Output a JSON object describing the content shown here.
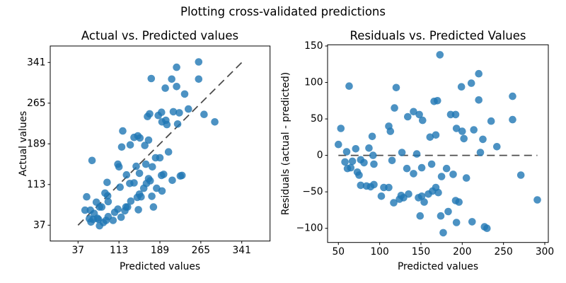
{
  "suptitle": "Plotting cross-validated predictions",
  "left_plot": {
    "title": "Actual vs. Predicted values",
    "xlabel": "Predicted values",
    "ylabel": "Actual values",
    "x_tick_labels": [
      "37",
      "113",
      "189",
      "265",
      "341"
    ],
    "y_tick_labels": [
      "37",
      "113",
      "189",
      "265",
      "341"
    ]
  },
  "right_plot": {
    "title": "Residuals vs. Predicted Values",
    "xlabel": "Predicted values",
    "ylabel": "Residuals (actual - predicted)",
    "x_tick_labels": [
      "50",
      "100",
      "150",
      "200",
      "250",
      "300"
    ],
    "y_tick_labels": [
      "−100",
      "−50",
      "0",
      "50",
      "100",
      "150"
    ]
  },
  "colors": {
    "marker": "#1f77b4",
    "marker_alpha": 0.8,
    "reference_line": "#000000",
    "reference_line_alpha": 0.7,
    "spine": "#000000",
    "background": "#ffffff"
  },
  "chart_data": [
    {
      "type": "scatter",
      "title": "Actual vs. Predicted values",
      "xlabel": "Predicted values",
      "ylabel": "Actual values",
      "x_ticks": [
        37,
        113,
        189,
        265,
        341
      ],
      "y_ticks": [
        37,
        113,
        189,
        265,
        341
      ],
      "xlim": [
        -15,
        394
      ],
      "ylim": [
        7,
        372
      ],
      "grid": false,
      "legend": false,
      "reference_line": {
        "style": "dashed",
        "x": [
          37,
          341
        ],
        "y": [
          37,
          341
        ],
        "meaning": "identity y=x"
      },
      "x": [
        50,
        53,
        58,
        60,
        61,
        63,
        65,
        67,
        71,
        73,
        75,
        77,
        77,
        81,
        84,
        87,
        89,
        91,
        92,
        93,
        93,
        102,
        105,
        111,
        111,
        113,
        115,
        117,
        118,
        120,
        124,
        126,
        127,
        129,
        133,
        134,
        135,
        141,
        141,
        145,
        147,
        148,
        149,
        151,
        151,
        152,
        154,
        159,
        161,
        163,
        164,
        166,
        168,
        168,
        170,
        171,
        173,
        174,
        175,
        177,
        181,
        183,
        186,
        189,
        192,
        192,
        193,
        193,
        196,
        199,
        200,
        202,
        205,
        211,
        212,
        214,
        220,
        220,
        222,
        225,
        227,
        230,
        235,
        242,
        261,
        261,
        271,
        291
      ],
      "y": [
        65,
        90,
        49,
        65,
        43,
        158,
        48,
        59,
        80,
        50,
        48,
        71,
        36,
        71,
        42,
        97,
        46,
        117,
        92,
        81,
        53,
        46,
        61,
        151,
        67,
        146,
        108,
        52,
        183,
        213,
        64,
        71,
        131,
        71,
        115,
        187,
        82,
        201,
        116,
        147,
        89,
        204,
        66,
        134,
        95,
        200,
        90,
        106,
        186,
        151,
        115,
        240,
        196,
        124,
        245,
        120,
        311,
        91,
        146,
        71,
        163,
        106,
        242,
        163,
        248,
        130,
        230,
        101,
        132,
        293,
        233,
        225,
        174,
        310,
        121,
        249,
        332,
        296,
        226,
        247,
        129,
        130,
        282,
        254,
        342,
        310,
        244,
        230
      ]
    },
    {
      "type": "scatter",
      "title": "Residuals vs. Predicted Values",
      "xlabel": "Predicted values",
      "ylabel": "Residuals (actual - predicted)",
      "x_ticks": [
        50,
        100,
        150,
        200,
        250,
        300
      ],
      "y_ticks": [
        -100,
        -50,
        0,
        50,
        100,
        150
      ],
      "xlim": [
        38,
        303
      ],
      "ylim": [
        -118,
        150
      ],
      "grid": false,
      "legend": false,
      "reference_line": {
        "style": "dashed",
        "x": [
          50,
          291
        ],
        "y": [
          0,
          0
        ],
        "meaning": "zero residual"
      },
      "x": [
        50,
        53,
        58,
        60,
        61,
        63,
        65,
        67,
        71,
        73,
        75,
        77,
        77,
        81,
        84,
        87,
        89,
        91,
        92,
        93,
        93,
        102,
        105,
        111,
        111,
        113,
        115,
        117,
        118,
        120,
        124,
        126,
        127,
        129,
        133,
        134,
        135,
        141,
        141,
        145,
        147,
        148,
        149,
        151,
        151,
        152,
        154,
        159,
        161,
        163,
        164,
        166,
        168,
        168,
        170,
        171,
        173,
        174,
        175,
        177,
        181,
        183,
        186,
        189,
        192,
        192,
        193,
        193,
        196,
        199,
        200,
        202,
        205,
        211,
        212,
        214,
        220,
        220,
        222,
        225,
        227,
        230,
        235,
        242,
        261,
        261,
        271,
        291
      ],
      "y": [
        15,
        37,
        -9,
        5,
        -18,
        95,
        -17,
        -8,
        9,
        -23,
        -27,
        -6,
        -41,
        -10,
        -42,
        10,
        -43,
        26,
        0,
        -12,
        -40,
        -56,
        -44,
        40,
        -44,
        33,
        -7,
        -65,
        65,
        93,
        -60,
        -55,
        4,
        -58,
        -18,
        53,
        -53,
        60,
        -25,
        2,
        -58,
        56,
        -83,
        -17,
        -56,
        48,
        -64,
        -53,
        25,
        -12,
        -49,
        74,
        28,
        -44,
        75,
        -51,
        138,
        -83,
        -29,
        -106,
        -18,
        -77,
        56,
        -26,
        56,
        -62,
        37,
        -92,
        -64,
        94,
        33,
        23,
        -31,
        99,
        -91,
        35,
        112,
        76,
        4,
        22,
        -98,
        -100,
        47,
        12,
        81,
        49,
        -27,
        -61
      ]
    }
  ]
}
